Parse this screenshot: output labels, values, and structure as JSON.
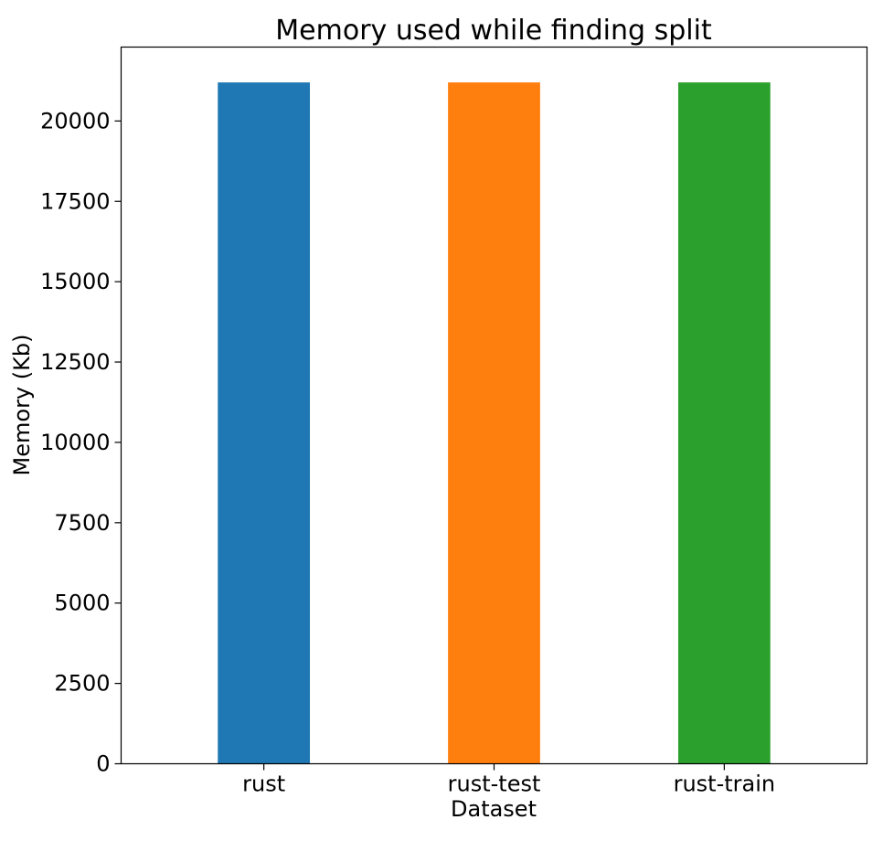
{
  "chart_data": {
    "type": "bar",
    "title": "Memory used while finding split",
    "xlabel": "Dataset",
    "ylabel": "Memory (Kb)",
    "categories": [
      "rust",
      "rust-test",
      "rust-train"
    ],
    "values": [
      21200,
      21200,
      21200
    ],
    "colors": [
      "#1f77b4",
      "#ff7f0e",
      "#2ca02c"
    ],
    "ylim": [
      0,
      22300
    ],
    "yticks": [
      0,
      2500,
      5000,
      7500,
      10000,
      12500,
      15000,
      17500,
      20000
    ],
    "grid": false,
    "legend": "none"
  }
}
